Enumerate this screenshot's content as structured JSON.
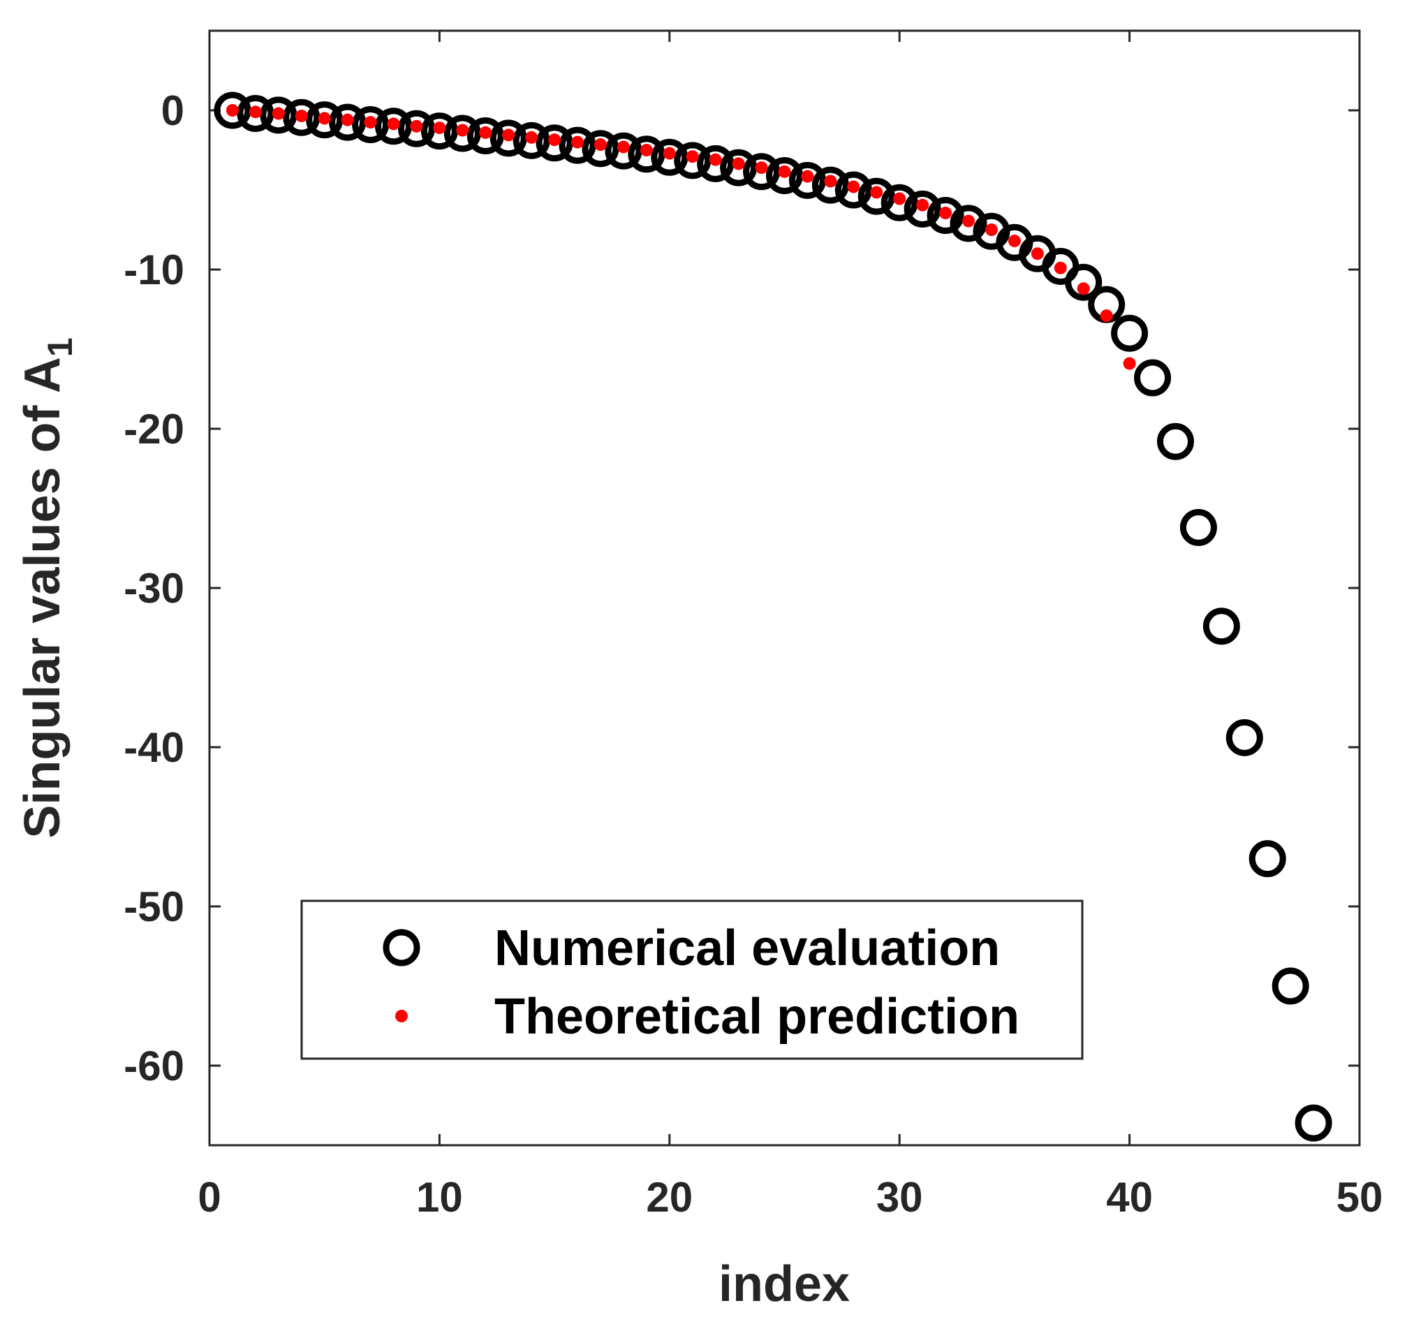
{
  "chart_data": {
    "type": "scatter",
    "title": "",
    "xlabel": "index",
    "ylabel": "Singular values of A",
    "ylabel_subscript": "1",
    "xlim": [
      0,
      50
    ],
    "ylim": [
      -65,
      5
    ],
    "xticks": [
      0,
      10,
      20,
      30,
      40,
      50
    ],
    "yticks": [
      0,
      -10,
      -20,
      -30,
      -40,
      -50,
      -60
    ],
    "xtick_labels": [
      "0",
      "10",
      "20",
      "30",
      "40",
      "50"
    ],
    "ytick_labels": [
      "0",
      "-10",
      "-20",
      "-30",
      "-40",
      "-50",
      "-60"
    ],
    "grid": false,
    "legend_position": "bottom-left",
    "series": [
      {
        "name": "Numerical evaluation",
        "marker": "open-circle",
        "color": "#000000",
        "x": [
          1,
          2,
          3,
          4,
          5,
          6,
          7,
          8,
          9,
          10,
          11,
          12,
          13,
          14,
          15,
          16,
          17,
          18,
          19,
          20,
          21,
          22,
          23,
          24,
          25,
          26,
          27,
          28,
          29,
          30,
          31,
          32,
          33,
          34,
          35,
          36,
          37,
          38,
          39,
          40,
          41,
          42,
          43,
          44,
          45,
          46,
          47,
          48
        ],
        "values": [
          0.0,
          -0.2,
          -0.3,
          -0.45,
          -0.6,
          -0.75,
          -0.9,
          -1.0,
          -1.15,
          -1.3,
          -1.45,
          -1.6,
          -1.75,
          -1.9,
          -2.05,
          -2.2,
          -2.4,
          -2.55,
          -2.75,
          -2.95,
          -3.15,
          -3.35,
          -3.6,
          -3.85,
          -4.1,
          -4.4,
          -4.7,
          -5.0,
          -5.4,
          -5.8,
          -6.2,
          -6.6,
          -7.1,
          -7.6,
          -8.3,
          -9.0,
          -9.8,
          -10.8,
          -12.2,
          -14.0,
          -16.8,
          -20.8,
          -26.2,
          -32.4,
          -39.4,
          -47.0,
          -55.0,
          -63.6
        ]
      },
      {
        "name": "Theoretical prediction",
        "marker": "filled-dot",
        "color": "#ff0000",
        "x": [
          1,
          2,
          3,
          4,
          5,
          6,
          7,
          8,
          9,
          10,
          11,
          12,
          13,
          14,
          15,
          16,
          17,
          18,
          19,
          20,
          21,
          22,
          23,
          24,
          25,
          26,
          27,
          28,
          29,
          30,
          31,
          32,
          33,
          34,
          35,
          36,
          37,
          38,
          39,
          40
        ],
        "values": [
          0.0,
          -0.1,
          -0.2,
          -0.35,
          -0.5,
          -0.6,
          -0.75,
          -0.85,
          -1.0,
          -1.1,
          -1.25,
          -1.4,
          -1.55,
          -1.7,
          -1.85,
          -2.0,
          -2.15,
          -2.3,
          -2.5,
          -2.7,
          -2.9,
          -3.1,
          -3.35,
          -3.6,
          -3.85,
          -4.15,
          -4.45,
          -4.8,
          -5.15,
          -5.55,
          -5.95,
          -6.45,
          -6.95,
          -7.5,
          -8.2,
          -9.0,
          -9.9,
          -11.2,
          -12.9,
          -15.9
        ]
      }
    ],
    "legend": {
      "entries": [
        "Numerical evaluation",
        "Theoretical prediction"
      ]
    }
  }
}
